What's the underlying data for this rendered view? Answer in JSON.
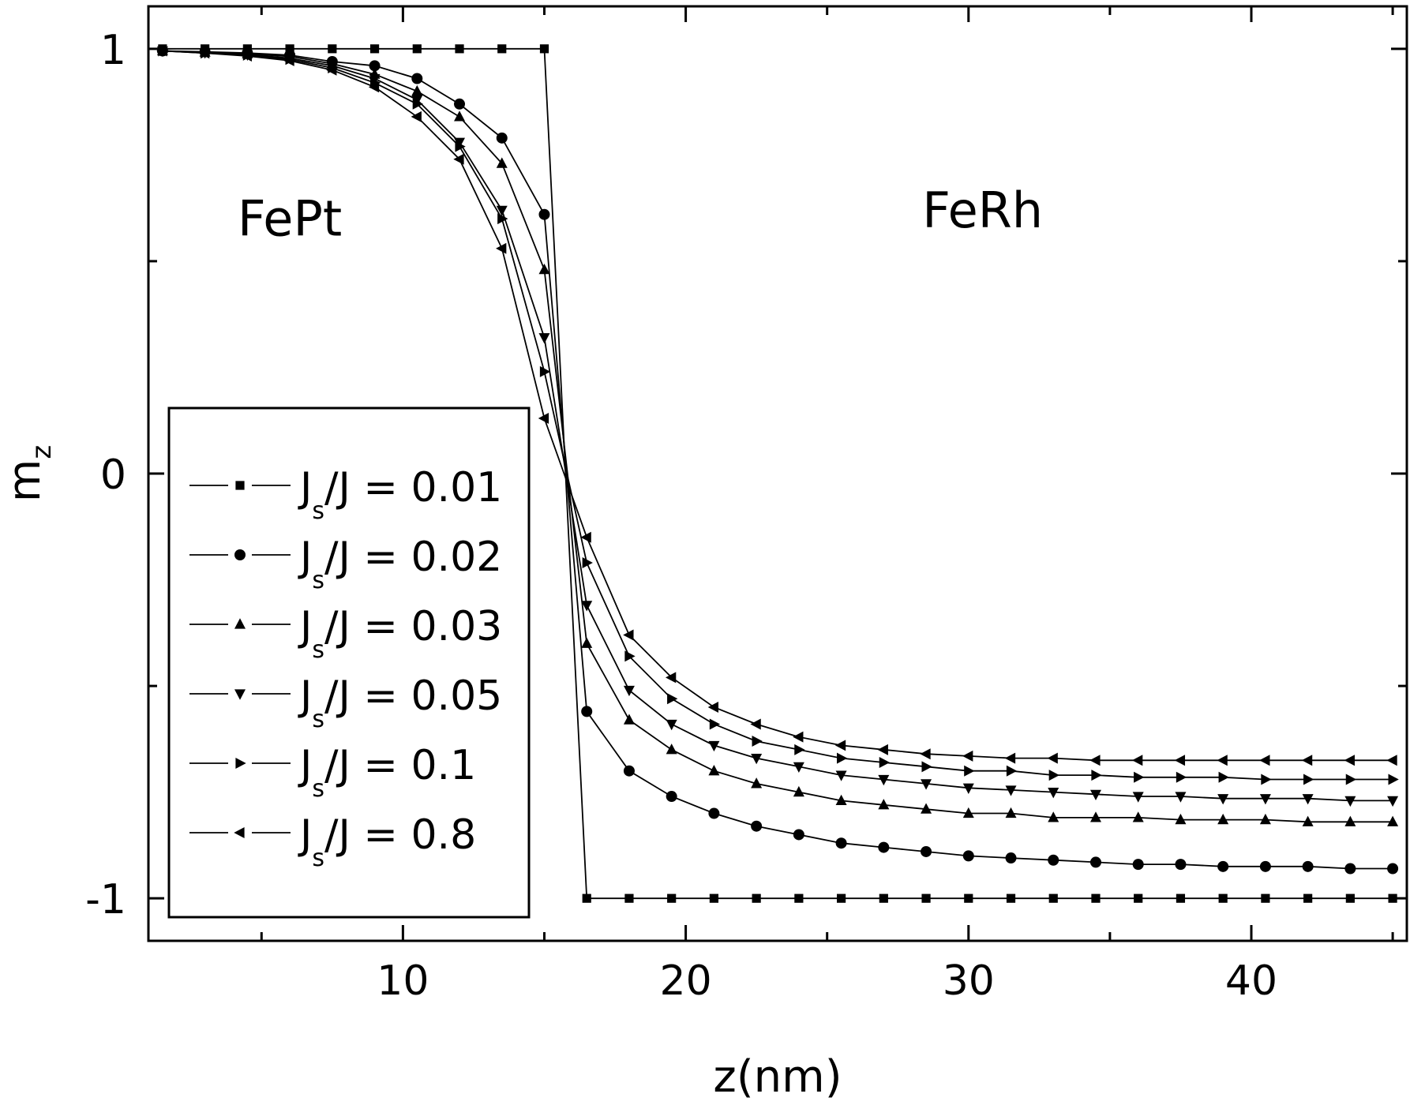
{
  "chart_data": {
    "type": "line",
    "xlabel": "z(nm)",
    "ylabel": {
      "main": "m",
      "sub": "z"
    },
    "xlim": [
      1.0,
      45.5
    ],
    "ylim": [
      -1.1,
      1.1
    ],
    "xticks": [
      10,
      20,
      30,
      40
    ],
    "xticks_minor": [
      5,
      15,
      25,
      35,
      45
    ],
    "yticks": [
      1,
      0,
      -1
    ],
    "yticks_minor": [
      0.5,
      -0.5
    ],
    "grid": false,
    "legend_position": "bottom-left",
    "annotations": [
      {
        "text": "FePt",
        "x": 6.0,
        "y": 0.56
      },
      {
        "text": "FeRh",
        "x": 30.5,
        "y": 0.58
      }
    ],
    "series": [
      {
        "name": {
          "pre": "J",
          "sub": "s",
          "post": "/J = 0.01"
        },
        "marker": "square",
        "x": [
          1.5,
          3,
          4.5,
          6,
          7.5,
          9,
          10.5,
          12,
          13.5,
          15,
          16.5,
          18,
          19.5,
          21,
          22.5,
          24,
          25.5,
          27,
          28.5,
          30,
          31.5,
          33,
          34.5,
          36,
          37.5,
          39,
          40.5,
          42,
          43.5,
          45
        ],
        "y": [
          1,
          1,
          1,
          1,
          1,
          1,
          1,
          1,
          1,
          1,
          -1,
          -1,
          -1,
          -1,
          -1,
          -1,
          -1,
          -1,
          -1,
          -1,
          -1,
          -1,
          -1,
          -1,
          -1,
          -1,
          -1,
          -1,
          -1,
          -1
        ]
      },
      {
        "name": {
          "pre": "J",
          "sub": "s",
          "post": "/J = 0.02"
        },
        "marker": "circle",
        "x": [
          1.5,
          3,
          4.5,
          6,
          7.5,
          9,
          10.5,
          12,
          13.5,
          15,
          16.5,
          18,
          19.5,
          21,
          22.5,
          24,
          25.5,
          27,
          28.5,
          30,
          31.5,
          33,
          34.5,
          36,
          37.5,
          39,
          40.5,
          42,
          43.5,
          45
        ],
        "y": [
          0.995,
          0.993,
          0.99,
          0.985,
          0.97,
          0.96,
          0.93,
          0.87,
          0.79,
          0.61,
          -0.56,
          -0.7,
          -0.76,
          -0.8,
          -0.83,
          -0.85,
          -0.87,
          -0.88,
          -0.89,
          -0.9,
          -0.905,
          -0.91,
          -0.915,
          -0.92,
          -0.92,
          -0.925,
          -0.925,
          -0.925,
          -0.93,
          -0.93
        ]
      },
      {
        "name": {
          "pre": "J",
          "sub": "s",
          "post": "/J = 0.03"
        },
        "marker": "triangle-up",
        "x": [
          1.5,
          3,
          4.5,
          6,
          7.5,
          9,
          10.5,
          12,
          13.5,
          15,
          16.5,
          18,
          19.5,
          21,
          22.5,
          24,
          25.5,
          27,
          28.5,
          30,
          31.5,
          33,
          34.5,
          36,
          37.5,
          39,
          40.5,
          42,
          43.5,
          45
        ],
        "y": [
          0.995,
          0.992,
          0.988,
          0.982,
          0.965,
          0.94,
          0.9,
          0.84,
          0.73,
          0.48,
          -0.4,
          -0.58,
          -0.65,
          -0.7,
          -0.73,
          -0.75,
          -0.77,
          -0.78,
          -0.79,
          -0.8,
          -0.8,
          -0.81,
          -0.81,
          -0.81,
          -0.815,
          -0.815,
          -0.815,
          -0.82,
          -0.82,
          -0.82
        ]
      },
      {
        "name": {
          "pre": "J",
          "sub": "s",
          "post": "/J = 0.05"
        },
        "marker": "triangle-down",
        "x": [
          1.5,
          3,
          4.5,
          6,
          7.5,
          9,
          10.5,
          12,
          13.5,
          15,
          16.5,
          18,
          19.5,
          21,
          22.5,
          24,
          25.5,
          27,
          28.5,
          30,
          31.5,
          33,
          34.5,
          36,
          37.5,
          39,
          40.5,
          42,
          43.5,
          45
        ],
        "y": [
          0.995,
          0.991,
          0.986,
          0.978,
          0.96,
          0.93,
          0.88,
          0.78,
          0.62,
          0.32,
          -0.31,
          -0.51,
          -0.59,
          -0.64,
          -0.67,
          -0.69,
          -0.71,
          -0.72,
          -0.73,
          -0.74,
          -0.745,
          -0.75,
          -0.755,
          -0.76,
          -0.76,
          -0.765,
          -0.765,
          -0.765,
          -0.77,
          -0.77
        ]
      },
      {
        "name": {
          "pre": "J",
          "sub": "s",
          "post": "/J = 0.1"
        },
        "marker": "triangle-right",
        "x": [
          1.5,
          3,
          4.5,
          6,
          7.5,
          9,
          10.5,
          12,
          13.5,
          15,
          16.5,
          18,
          19.5,
          21,
          22.5,
          24,
          25.5,
          27,
          28.5,
          30,
          31.5,
          33,
          34.5,
          36,
          37.5,
          39,
          40.5,
          42,
          43.5,
          45
        ],
        "y": [
          0.995,
          0.99,
          0.985,
          0.975,
          0.955,
          0.92,
          0.87,
          0.77,
          0.6,
          0.24,
          -0.21,
          -0.43,
          -0.53,
          -0.59,
          -0.63,
          -0.65,
          -0.67,
          -0.68,
          -0.69,
          -0.7,
          -0.7,
          -0.71,
          -0.71,
          -0.715,
          -0.715,
          -0.715,
          -0.72,
          -0.72,
          -0.72,
          -0.72
        ]
      },
      {
        "name": {
          "pre": "J",
          "sub": "s",
          "post": "/J = 0.8"
        },
        "marker": "triangle-left",
        "x": [
          1.5,
          3,
          4.5,
          6,
          7.5,
          9,
          10.5,
          12,
          13.5,
          15,
          16.5,
          18,
          19.5,
          21,
          22.5,
          24,
          25.5,
          27,
          28.5,
          30,
          31.5,
          33,
          34.5,
          36,
          37.5,
          39,
          40.5,
          42,
          43.5,
          45
        ],
        "y": [
          0.995,
          0.99,
          0.983,
          0.972,
          0.95,
          0.91,
          0.84,
          0.74,
          0.53,
          0.13,
          -0.15,
          -0.38,
          -0.48,
          -0.55,
          -0.59,
          -0.62,
          -0.64,
          -0.65,
          -0.66,
          -0.665,
          -0.67,
          -0.67,
          -0.675,
          -0.675,
          -0.675,
          -0.675,
          -0.675,
          -0.675,
          -0.675,
          -0.675
        ]
      }
    ]
  }
}
